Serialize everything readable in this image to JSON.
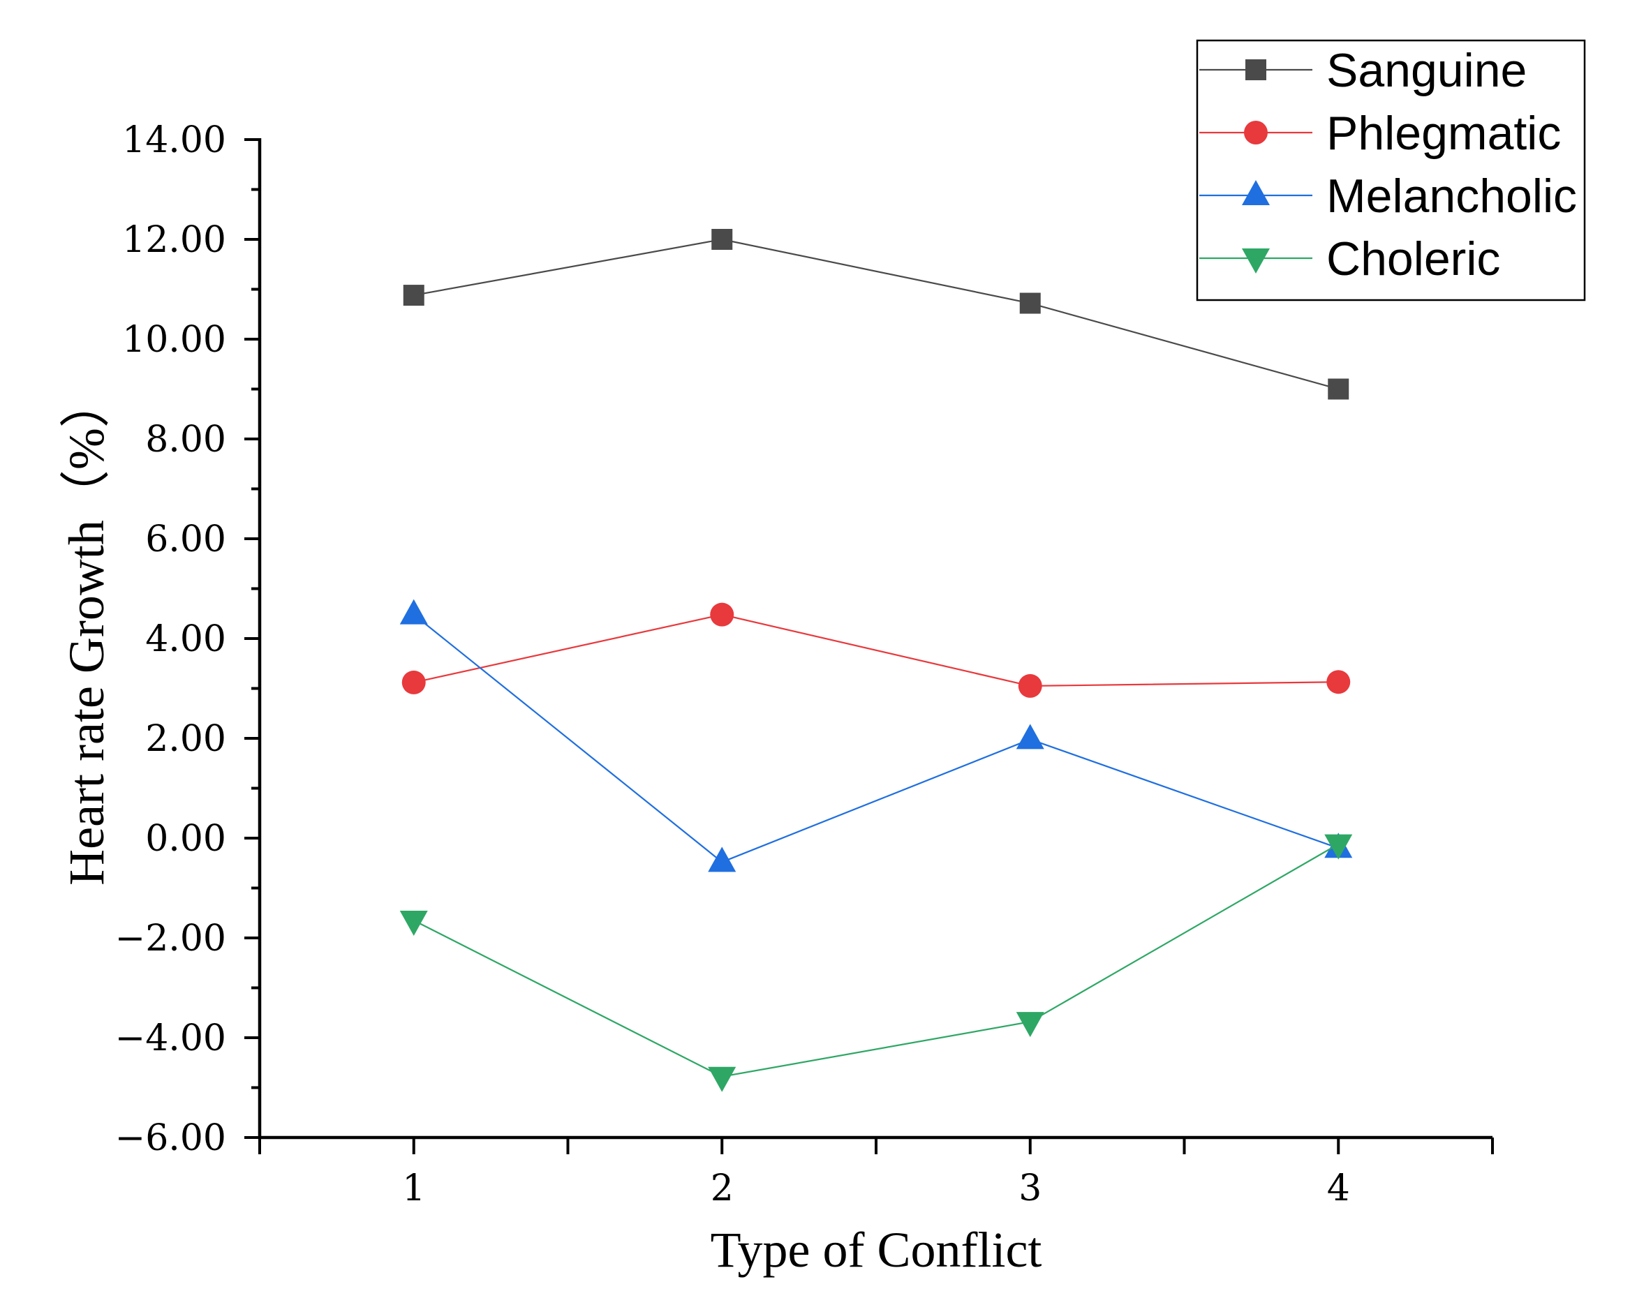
{
  "chart_data": {
    "type": "line",
    "title": "",
    "xlabel": "Type of Conflict",
    "ylabel": "Heart rate Growth（%）",
    "x": [
      1,
      2,
      3,
      4
    ],
    "xlim": [
      0.5,
      4.5
    ],
    "xticks": [
      "1",
      "2",
      "3",
      "4"
    ],
    "ylim": [
      -6,
      14
    ],
    "yticks": [
      "-6.00",
      "-4.00",
      "-2.00",
      "0.00",
      "2.00",
      "4.00",
      "6.00",
      "8.00",
      "10.00",
      "12.00",
      "14.00"
    ],
    "grid": false,
    "legend_position": "top-right",
    "series": [
      {
        "name": "Sanguine",
        "values": [
          10.88,
          12.0,
          10.72,
          9.0
        ],
        "color": "#4a4a4a",
        "marker": "square"
      },
      {
        "name": "Phlegmatic",
        "values": [
          3.12,
          4.48,
          3.05,
          3.13
        ],
        "color": "#e8393d",
        "marker": "circle"
      },
      {
        "name": "Melancholic",
        "values": [
          4.48,
          -0.48,
          1.98,
          -0.2
        ],
        "color": "#1f6fe0",
        "marker": "triangle-up"
      },
      {
        "name": "Choleric",
        "values": [
          -1.65,
          -4.78,
          -3.68,
          -0.12
        ],
        "color": "#2ea765",
        "marker": "triangle-down"
      }
    ]
  }
}
